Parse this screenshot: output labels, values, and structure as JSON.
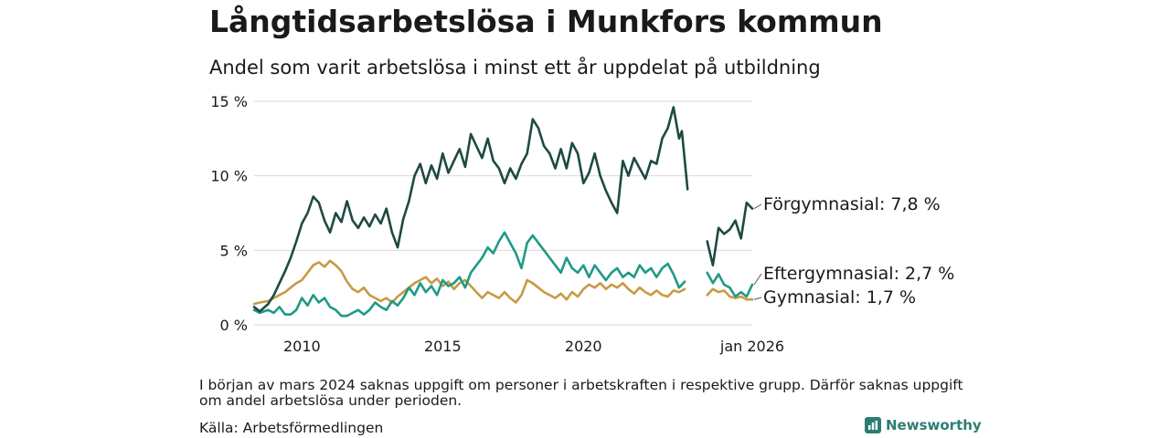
{
  "header": {
    "title": "Långtidsarbetslösa i Munkfors kommun",
    "subtitle": "Andel som varit arbetslösa i minst ett år uppdelat på utbildning"
  },
  "footer": {
    "note": "I början av mars 2024 saknas uppgift om personer i arbetskraften i respektive grupp. Därför saknas uppgift om andel arbetslösa under perioden.",
    "source": "Källa: Arbetsförmedlingen",
    "brand": "Newsworthy"
  },
  "colors": {
    "forgymnasial": "#1d4a42",
    "eftergymnasial": "#1f9a86",
    "gymnasial": "#c99a45",
    "grid": "#d9d9d9"
  },
  "chart_data": {
    "type": "line",
    "title": "Långtidsarbetslösa i Munkfors kommun",
    "subtitle": "Andel som varit arbetslösa i minst ett år uppdelat på utbildning",
    "xlabel": "",
    "ylabel": "",
    "xlim": [
      2008.3,
      2026.0
    ],
    "ylim": [
      0,
      15
    ],
    "x_ticks": [
      {
        "value": 2010,
        "label": "2010"
      },
      {
        "value": 2015,
        "label": "2015"
      },
      {
        "value": 2020,
        "label": "2020"
      },
      {
        "value": 2026,
        "label": "jan 2026"
      }
    ],
    "y_ticks": [
      {
        "value": 0,
        "label": "0 %"
      },
      {
        "value": 5,
        "label": "5 %"
      },
      {
        "value": 10,
        "label": "10 %"
      },
      {
        "value": 15,
        "label": "15 %"
      }
    ],
    "gap": [
      2023.7,
      2024.4
    ],
    "series": [
      {
        "name": "Förgymnasial",
        "end_label": "Förgymnasial: 7,8 %",
        "color_key": "forgymnasial",
        "points": [
          [
            2008.3,
            1.2
          ],
          [
            2008.5,
            0.9
          ],
          [
            2008.8,
            1.4
          ],
          [
            2009.0,
            2.0
          ],
          [
            2009.2,
            2.8
          ],
          [
            2009.4,
            3.6
          ],
          [
            2009.6,
            4.5
          ],
          [
            2009.8,
            5.6
          ],
          [
            2010.0,
            6.8
          ],
          [
            2010.2,
            7.5
          ],
          [
            2010.4,
            8.6
          ],
          [
            2010.6,
            8.2
          ],
          [
            2010.8,
            7.0
          ],
          [
            2011.0,
            6.2
          ],
          [
            2011.2,
            7.5
          ],
          [
            2011.4,
            6.9
          ],
          [
            2011.6,
            8.3
          ],
          [
            2011.8,
            7.0
          ],
          [
            2012.0,
            6.5
          ],
          [
            2012.2,
            7.2
          ],
          [
            2012.4,
            6.6
          ],
          [
            2012.6,
            7.4
          ],
          [
            2012.8,
            6.8
          ],
          [
            2013.0,
            7.8
          ],
          [
            2013.2,
            6.2
          ],
          [
            2013.4,
            5.2
          ],
          [
            2013.6,
            7.1
          ],
          [
            2013.8,
            8.3
          ],
          [
            2014.0,
            10.0
          ],
          [
            2014.2,
            10.8
          ],
          [
            2014.4,
            9.5
          ],
          [
            2014.6,
            10.7
          ],
          [
            2014.8,
            9.8
          ],
          [
            2015.0,
            11.5
          ],
          [
            2015.2,
            10.2
          ],
          [
            2015.4,
            11.0
          ],
          [
            2015.6,
            11.8
          ],
          [
            2015.8,
            10.6
          ],
          [
            2016.0,
            12.8
          ],
          [
            2016.2,
            12.0
          ],
          [
            2016.4,
            11.2
          ],
          [
            2016.6,
            12.5
          ],
          [
            2016.8,
            11.0
          ],
          [
            2017.0,
            10.5
          ],
          [
            2017.2,
            9.5
          ],
          [
            2017.4,
            10.5
          ],
          [
            2017.6,
            9.8
          ],
          [
            2017.8,
            10.8
          ],
          [
            2018.0,
            11.5
          ],
          [
            2018.2,
            13.8
          ],
          [
            2018.4,
            13.2
          ],
          [
            2018.6,
            12.0
          ],
          [
            2018.8,
            11.5
          ],
          [
            2019.0,
            10.5
          ],
          [
            2019.2,
            11.8
          ],
          [
            2019.4,
            10.5
          ],
          [
            2019.6,
            12.2
          ],
          [
            2019.8,
            11.5
          ],
          [
            2020.0,
            9.5
          ],
          [
            2020.2,
            10.2
          ],
          [
            2020.4,
            11.5
          ],
          [
            2020.6,
            10.0
          ],
          [
            2020.8,
            9.0
          ],
          [
            2021.0,
            8.2
          ],
          [
            2021.2,
            7.5
          ],
          [
            2021.4,
            11.0
          ],
          [
            2021.6,
            10.0
          ],
          [
            2021.8,
            11.2
          ],
          [
            2022.0,
            10.5
          ],
          [
            2022.2,
            9.8
          ],
          [
            2022.4,
            11.0
          ],
          [
            2022.6,
            10.8
          ],
          [
            2022.8,
            12.5
          ],
          [
            2023.0,
            13.2
          ],
          [
            2023.2,
            14.6
          ],
          [
            2023.4,
            12.5
          ],
          [
            2023.5,
            13.0
          ],
          [
            2023.7,
            9.1
          ],
          [
            2024.4,
            5.6
          ],
          [
            2024.6,
            4.0
          ],
          [
            2024.8,
            6.5
          ],
          [
            2025.0,
            6.1
          ],
          [
            2025.2,
            6.4
          ],
          [
            2025.4,
            7.0
          ],
          [
            2025.6,
            5.8
          ],
          [
            2025.8,
            8.2
          ],
          [
            2026.0,
            7.8
          ]
        ]
      },
      {
        "name": "Eftergymnasial",
        "end_label": "Eftergymnasial: 2,7 %",
        "color_key": "eftergymnasial",
        "points": [
          [
            2008.3,
            1.0
          ],
          [
            2008.5,
            0.8
          ],
          [
            2008.8,
            1.0
          ],
          [
            2009.0,
            0.8
          ],
          [
            2009.2,
            1.2
          ],
          [
            2009.4,
            0.7
          ],
          [
            2009.6,
            0.7
          ],
          [
            2009.8,
            1.0
          ],
          [
            2010.0,
            1.8
          ],
          [
            2010.2,
            1.3
          ],
          [
            2010.4,
            2.0
          ],
          [
            2010.6,
            1.5
          ],
          [
            2010.8,
            1.8
          ],
          [
            2011.0,
            1.2
          ],
          [
            2011.2,
            1.0
          ],
          [
            2011.4,
            0.6
          ],
          [
            2011.6,
            0.6
          ],
          [
            2011.8,
            0.8
          ],
          [
            2012.0,
            1.0
          ],
          [
            2012.2,
            0.7
          ],
          [
            2012.4,
            1.0
          ],
          [
            2012.6,
            1.5
          ],
          [
            2012.8,
            1.2
          ],
          [
            2013.0,
            1.0
          ],
          [
            2013.2,
            1.6
          ],
          [
            2013.4,
            1.3
          ],
          [
            2013.6,
            1.8
          ],
          [
            2013.8,
            2.5
          ],
          [
            2014.0,
            2.0
          ],
          [
            2014.2,
            2.8
          ],
          [
            2014.4,
            2.2
          ],
          [
            2014.6,
            2.6
          ],
          [
            2014.8,
            2.0
          ],
          [
            2015.0,
            3.0
          ],
          [
            2015.2,
            2.6
          ],
          [
            2015.4,
            2.8
          ],
          [
            2015.6,
            3.2
          ],
          [
            2015.8,
            2.5
          ],
          [
            2016.0,
            3.5
          ],
          [
            2016.2,
            4.0
          ],
          [
            2016.4,
            4.5
          ],
          [
            2016.6,
            5.2
          ],
          [
            2016.8,
            4.8
          ],
          [
            2017.0,
            5.6
          ],
          [
            2017.2,
            6.2
          ],
          [
            2017.4,
            5.5
          ],
          [
            2017.6,
            4.8
          ],
          [
            2017.8,
            3.8
          ],
          [
            2018.0,
            5.5
          ],
          [
            2018.2,
            6.0
          ],
          [
            2018.4,
            5.5
          ],
          [
            2018.6,
            5.0
          ],
          [
            2018.8,
            4.5
          ],
          [
            2019.0,
            4.0
          ],
          [
            2019.2,
            3.5
          ],
          [
            2019.4,
            4.5
          ],
          [
            2019.6,
            3.8
          ],
          [
            2019.8,
            3.5
          ],
          [
            2020.0,
            4.0
          ],
          [
            2020.2,
            3.2
          ],
          [
            2020.4,
            4.0
          ],
          [
            2020.6,
            3.5
          ],
          [
            2020.8,
            3.0
          ],
          [
            2021.0,
            3.5
          ],
          [
            2021.2,
            3.8
          ],
          [
            2021.4,
            3.2
          ],
          [
            2021.6,
            3.5
          ],
          [
            2021.8,
            3.2
          ],
          [
            2022.0,
            4.0
          ],
          [
            2022.2,
            3.5
          ],
          [
            2022.4,
            3.8
          ],
          [
            2022.6,
            3.2
          ],
          [
            2022.8,
            3.8
          ],
          [
            2023.0,
            4.1
          ],
          [
            2023.2,
            3.4
          ],
          [
            2023.4,
            2.5
          ],
          [
            2023.6,
            2.9
          ],
          [
            2024.4,
            3.5
          ],
          [
            2024.6,
            2.8
          ],
          [
            2024.8,
            3.4
          ],
          [
            2025.0,
            2.7
          ],
          [
            2025.2,
            2.5
          ],
          [
            2025.4,
            1.9
          ],
          [
            2025.6,
            2.2
          ],
          [
            2025.8,
            1.9
          ],
          [
            2026.0,
            2.7
          ]
        ]
      },
      {
        "name": "Gymnasial",
        "end_label": "Gymnasial: 1,7 %",
        "color_key": "gymnasial",
        "points": [
          [
            2008.3,
            1.4
          ],
          [
            2008.5,
            1.5
          ],
          [
            2008.8,
            1.6
          ],
          [
            2009.0,
            1.8
          ],
          [
            2009.2,
            2.0
          ],
          [
            2009.4,
            2.2
          ],
          [
            2009.6,
            2.5
          ],
          [
            2009.8,
            2.8
          ],
          [
            2010.0,
            3.0
          ],
          [
            2010.2,
            3.5
          ],
          [
            2010.4,
            4.0
          ],
          [
            2010.6,
            4.2
          ],
          [
            2010.8,
            3.9
          ],
          [
            2011.0,
            4.3
          ],
          [
            2011.2,
            4.0
          ],
          [
            2011.4,
            3.6
          ],
          [
            2011.6,
            2.9
          ],
          [
            2011.8,
            2.4
          ],
          [
            2012.0,
            2.2
          ],
          [
            2012.2,
            2.5
          ],
          [
            2012.4,
            2.0
          ],
          [
            2012.6,
            1.8
          ],
          [
            2012.8,
            1.6
          ],
          [
            2013.0,
            1.8
          ],
          [
            2013.2,
            1.5
          ],
          [
            2013.4,
            1.9
          ],
          [
            2013.6,
            2.2
          ],
          [
            2013.8,
            2.5
          ],
          [
            2014.0,
            2.8
          ],
          [
            2014.2,
            3.0
          ],
          [
            2014.4,
            3.2
          ],
          [
            2014.6,
            2.8
          ],
          [
            2014.8,
            3.1
          ],
          [
            2015.0,
            2.6
          ],
          [
            2015.2,
            2.9
          ],
          [
            2015.4,
            2.4
          ],
          [
            2015.6,
            2.8
          ],
          [
            2015.8,
            3.0
          ],
          [
            2016.0,
            2.6
          ],
          [
            2016.2,
            2.2
          ],
          [
            2016.4,
            1.8
          ],
          [
            2016.6,
            2.2
          ],
          [
            2016.8,
            2.0
          ],
          [
            2017.0,
            1.8
          ],
          [
            2017.2,
            2.2
          ],
          [
            2017.4,
            1.8
          ],
          [
            2017.6,
            1.5
          ],
          [
            2017.8,
            2.0
          ],
          [
            2018.0,
            3.0
          ],
          [
            2018.2,
            2.8
          ],
          [
            2018.4,
            2.5
          ],
          [
            2018.6,
            2.2
          ],
          [
            2018.8,
            2.0
          ],
          [
            2019.0,
            1.8
          ],
          [
            2019.2,
            2.1
          ],
          [
            2019.4,
            1.7
          ],
          [
            2019.6,
            2.2
          ],
          [
            2019.8,
            1.9
          ],
          [
            2020.0,
            2.4
          ],
          [
            2020.2,
            2.7
          ],
          [
            2020.4,
            2.5
          ],
          [
            2020.6,
            2.8
          ],
          [
            2020.8,
            2.4
          ],
          [
            2021.0,
            2.7
          ],
          [
            2021.2,
            2.5
          ],
          [
            2021.4,
            2.8
          ],
          [
            2021.6,
            2.4
          ],
          [
            2021.8,
            2.1
          ],
          [
            2022.0,
            2.5
          ],
          [
            2022.2,
            2.2
          ],
          [
            2022.4,
            2.0
          ],
          [
            2022.6,
            2.3
          ],
          [
            2022.8,
            2.0
          ],
          [
            2023.0,
            1.9
          ],
          [
            2023.2,
            2.3
          ],
          [
            2023.4,
            2.2
          ],
          [
            2023.6,
            2.4
          ],
          [
            2024.4,
            2.0
          ],
          [
            2024.6,
            2.4
          ],
          [
            2024.8,
            2.2
          ],
          [
            2025.0,
            2.3
          ],
          [
            2025.2,
            1.9
          ],
          [
            2025.4,
            1.8
          ],
          [
            2025.6,
            1.9
          ],
          [
            2025.8,
            1.7
          ],
          [
            2026.0,
            1.7
          ]
        ]
      }
    ]
  }
}
